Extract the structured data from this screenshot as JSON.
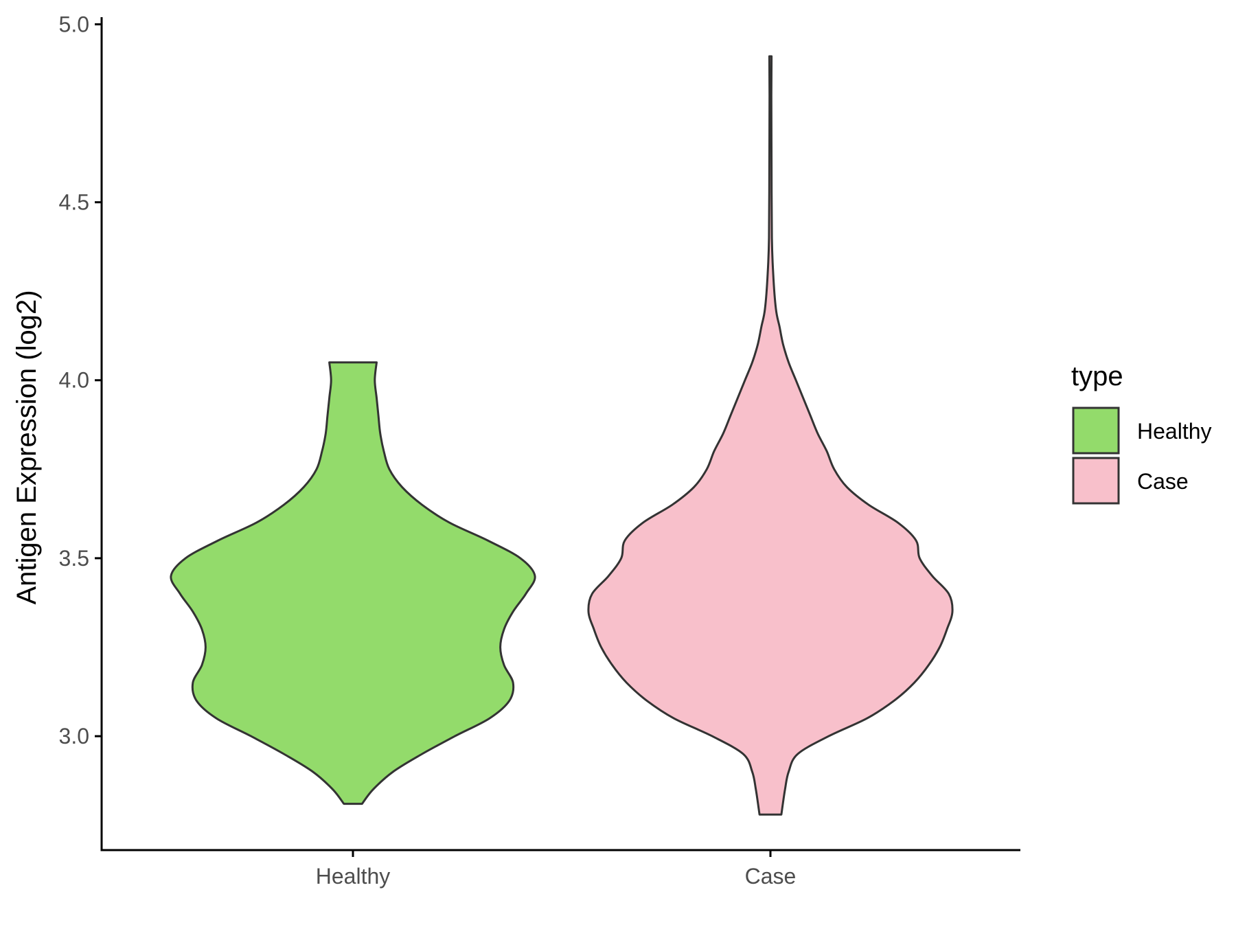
{
  "chart_data": {
    "type": "violin",
    "categories": [
      "Healthy",
      "Case"
    ],
    "xlabel": "",
    "ylabel": "Antigen Expression (log2)",
    "ylim": [
      2.68,
      5.02
    ],
    "yticks": [
      "3.0",
      "3.5",
      "4.0",
      "4.5",
      "5.0"
    ],
    "ytick_values": [
      3.0,
      3.5,
      4.0,
      4.5,
      5.0
    ],
    "grid": false,
    "legend": {
      "title": "type",
      "position": "right",
      "entries": [
        {
          "label": "Healthy",
          "color": "#93DB6B"
        },
        {
          "label": "Case",
          "color": "#F8C0CB"
        }
      ]
    },
    "series": [
      {
        "category": "Healthy",
        "color": "#93DB6B",
        "min": 2.81,
        "max": 4.05,
        "density_profile": [
          [
            2.81,
            0.05
          ],
          [
            2.85,
            0.11
          ],
          [
            2.9,
            0.22
          ],
          [
            2.95,
            0.38
          ],
          [
            3.0,
            0.56
          ],
          [
            3.05,
            0.75
          ],
          [
            3.1,
            0.86
          ],
          [
            3.15,
            0.88
          ],
          [
            3.2,
            0.83
          ],
          [
            3.25,
            0.81
          ],
          [
            3.3,
            0.83
          ],
          [
            3.35,
            0.88
          ],
          [
            3.4,
            0.95
          ],
          [
            3.45,
            1.0
          ],
          [
            3.5,
            0.92
          ],
          [
            3.55,
            0.74
          ],
          [
            3.6,
            0.53
          ],
          [
            3.65,
            0.38
          ],
          [
            3.7,
            0.27
          ],
          [
            3.75,
            0.2
          ],
          [
            3.8,
            0.17
          ],
          [
            3.85,
            0.15
          ],
          [
            3.9,
            0.14
          ],
          [
            3.95,
            0.13
          ],
          [
            4.0,
            0.12
          ],
          [
            4.05,
            0.13
          ]
        ]
      },
      {
        "category": "Case",
        "color": "#F8C0CB",
        "min": 2.78,
        "max": 4.91,
        "density_profile": [
          [
            2.78,
            0.06
          ],
          [
            2.85,
            0.08
          ],
          [
            2.9,
            0.1
          ],
          [
            2.95,
            0.15
          ],
          [
            3.0,
            0.32
          ],
          [
            3.05,
            0.53
          ],
          [
            3.1,
            0.68
          ],
          [
            3.15,
            0.79
          ],
          [
            3.2,
            0.87
          ],
          [
            3.25,
            0.93
          ],
          [
            3.3,
            0.97
          ],
          [
            3.35,
            1.0
          ],
          [
            3.4,
            0.98
          ],
          [
            3.45,
            0.89
          ],
          [
            3.5,
            0.82
          ],
          [
            3.55,
            0.8
          ],
          [
            3.6,
            0.7
          ],
          [
            3.65,
            0.54
          ],
          [
            3.7,
            0.42
          ],
          [
            3.75,
            0.35
          ],
          [
            3.8,
            0.31
          ],
          [
            3.85,
            0.26
          ],
          [
            3.9,
            0.22
          ],
          [
            3.95,
            0.18
          ],
          [
            4.0,
            0.14
          ],
          [
            4.05,
            0.1
          ],
          [
            4.1,
            0.07
          ],
          [
            4.15,
            0.05
          ],
          [
            4.2,
            0.03
          ],
          [
            4.3,
            0.015
          ],
          [
            4.4,
            0.008
          ],
          [
            4.6,
            0.006
          ],
          [
            4.8,
            0.005
          ],
          [
            4.91,
            0.006
          ]
        ]
      }
    ]
  }
}
